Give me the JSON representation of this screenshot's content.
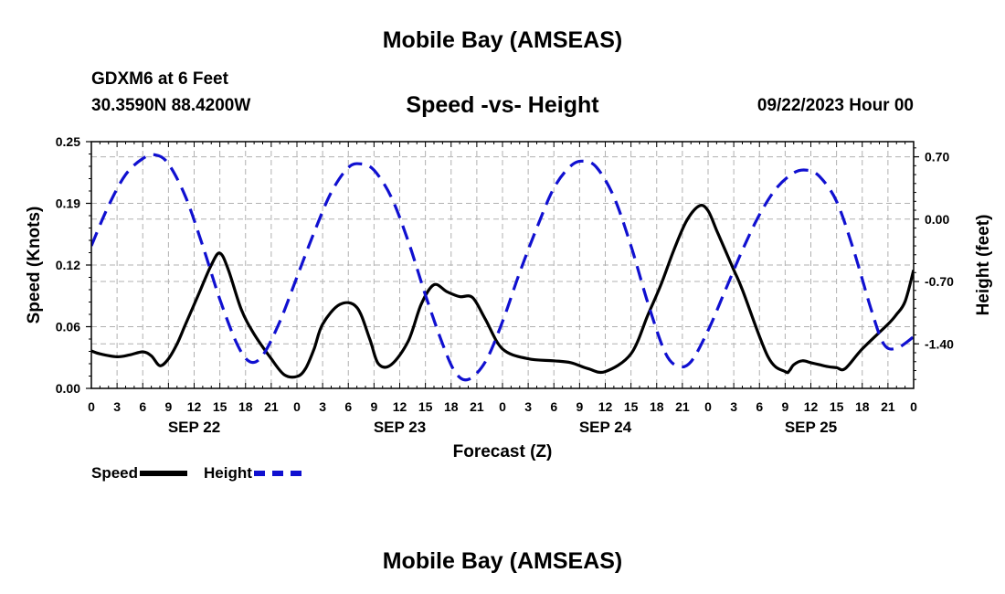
{
  "page": {
    "title": "Mobile Bay (AMSEAS)",
    "station": "GDXM6 at 6 Feet",
    "coordinates": "30.3590N  88.4200W",
    "chart_title": "Speed -vs- Height",
    "datetime": "09/22/2023 Hour 00",
    "footer_title": "Mobile Bay (AMSEAS)"
  },
  "legend": {
    "speed_label": "Speed",
    "height_label": "Height"
  },
  "colors": {
    "speed": "#000000",
    "height": "#1010d0",
    "grid": "#b0b0b0"
  },
  "chart_data": {
    "type": "line",
    "title": "Speed -vs- Height",
    "xlabel": "Forecast (Z)",
    "ylabel_left": "Speed (Knots)",
    "ylabel_right": "Height (feet)",
    "x_range_hours": [
      0,
      96
    ],
    "ylim_left": [
      0,
      0.25
    ],
    "ylim_right": [
      -1.9,
      0.87
    ],
    "left_ticks": [
      "0.00",
      "0.06",
      "0.12",
      "0.19",
      "0.25"
    ],
    "left_tick_values": [
      0,
      0.0625,
      0.125,
      0.1875,
      0.25
    ],
    "right_ticks": [
      "0.70",
      "0.00",
      "-0.70",
      "-1.40"
    ],
    "right_tick_values": [
      0.7,
      0.0,
      -0.7,
      -1.4
    ],
    "x_tick_labels": [
      "0",
      "3",
      "6",
      "9",
      "12",
      "15",
      "18",
      "21",
      "0",
      "3",
      "6",
      "9",
      "12",
      "15",
      "18",
      "21",
      "0",
      "3",
      "6",
      "9",
      "12",
      "15",
      "18",
      "21",
      "0",
      "3",
      "6",
      "9",
      "12",
      "15",
      "18",
      "21",
      "0"
    ],
    "day_labels": [
      {
        "label": "SEP 22",
        "hour": 12
      },
      {
        "label": "SEP 23",
        "hour": 36
      },
      {
        "label": "SEP 24",
        "hour": 60
      },
      {
        "label": "SEP 25",
        "hour": 84
      }
    ],
    "series": [
      {
        "name": "Speed",
        "axis": "left",
        "x": [
          0,
          1,
          3,
          4.5,
          6,
          7,
          8,
          9,
          10,
          11,
          12.5,
          14,
          15,
          16,
          17.5,
          19,
          21,
          22.5,
          24,
          25,
          26,
          27,
          29,
          31,
          32.5,
          33.5,
          35,
          37,
          38.5,
          40,
          41.5,
          43,
          44.5,
          46,
          48,
          51,
          54,
          56,
          58,
          60,
          63,
          65,
          66.5,
          68,
          69.5,
          71,
          72,
          73,
          74,
          75,
          76,
          79,
          81,
          81.5,
          82,
          83,
          84,
          85,
          86,
          87,
          88,
          90,
          93,
          94,
          95,
          96
        ],
        "values": [
          0.038,
          0.035,
          0.032,
          0.034,
          0.037,
          0.033,
          0.023,
          0.03,
          0.045,
          0.065,
          0.095,
          0.125,
          0.137,
          0.12,
          0.08,
          0.055,
          0.03,
          0.014,
          0.012,
          0.02,
          0.04,
          0.065,
          0.085,
          0.082,
          0.05,
          0.025,
          0.024,
          0.048,
          0.085,
          0.105,
          0.098,
          0.093,
          0.092,
          0.07,
          0.04,
          0.03,
          0.028,
          0.026,
          0.02,
          0.017,
          0.035,
          0.075,
          0.105,
          0.14,
          0.17,
          0.185,
          0.18,
          0.16,
          0.14,
          0.12,
          0.1,
          0.032,
          0.017,
          0.018,
          0.024,
          0.028,
          0.026,
          0.024,
          0.022,
          0.021,
          0.02,
          0.04,
          0.065,
          0.075,
          0.088,
          0.12
        ]
      },
      {
        "name": "Height",
        "axis": "right",
        "x": [
          0,
          2,
          4,
          6,
          7.5,
          9,
          11,
          13,
          15,
          17,
          18.5,
          20,
          22,
          24,
          26,
          28,
          30,
          31.5,
          33,
          35,
          37,
          39,
          41,
          42.5,
          44,
          46,
          48,
          50,
          52,
          54,
          56,
          57.5,
          59,
          61,
          63,
          65,
          67,
          68.5,
          70,
          72,
          74,
          76,
          78,
          80,
          82,
          83.5,
          85,
          87,
          89,
          91,
          92.5,
          94,
          96
        ],
        "values": [
          -0.3,
          0.15,
          0.5,
          0.68,
          0.72,
          0.62,
          0.25,
          -0.3,
          -0.9,
          -1.4,
          -1.6,
          -1.53,
          -1.15,
          -0.65,
          -0.15,
          0.3,
          0.58,
          0.62,
          0.55,
          0.25,
          -0.25,
          -0.85,
          -1.4,
          -1.72,
          -1.8,
          -1.6,
          -1.15,
          -0.6,
          -0.1,
          0.35,
          0.6,
          0.65,
          0.58,
          0.25,
          -0.3,
          -0.95,
          -1.5,
          -1.65,
          -1.6,
          -1.25,
          -0.8,
          -0.35,
          0.05,
          0.35,
          0.52,
          0.55,
          0.48,
          0.2,
          -0.35,
          -1.0,
          -1.4,
          -1.45,
          -1.32
        ]
      }
    ]
  }
}
